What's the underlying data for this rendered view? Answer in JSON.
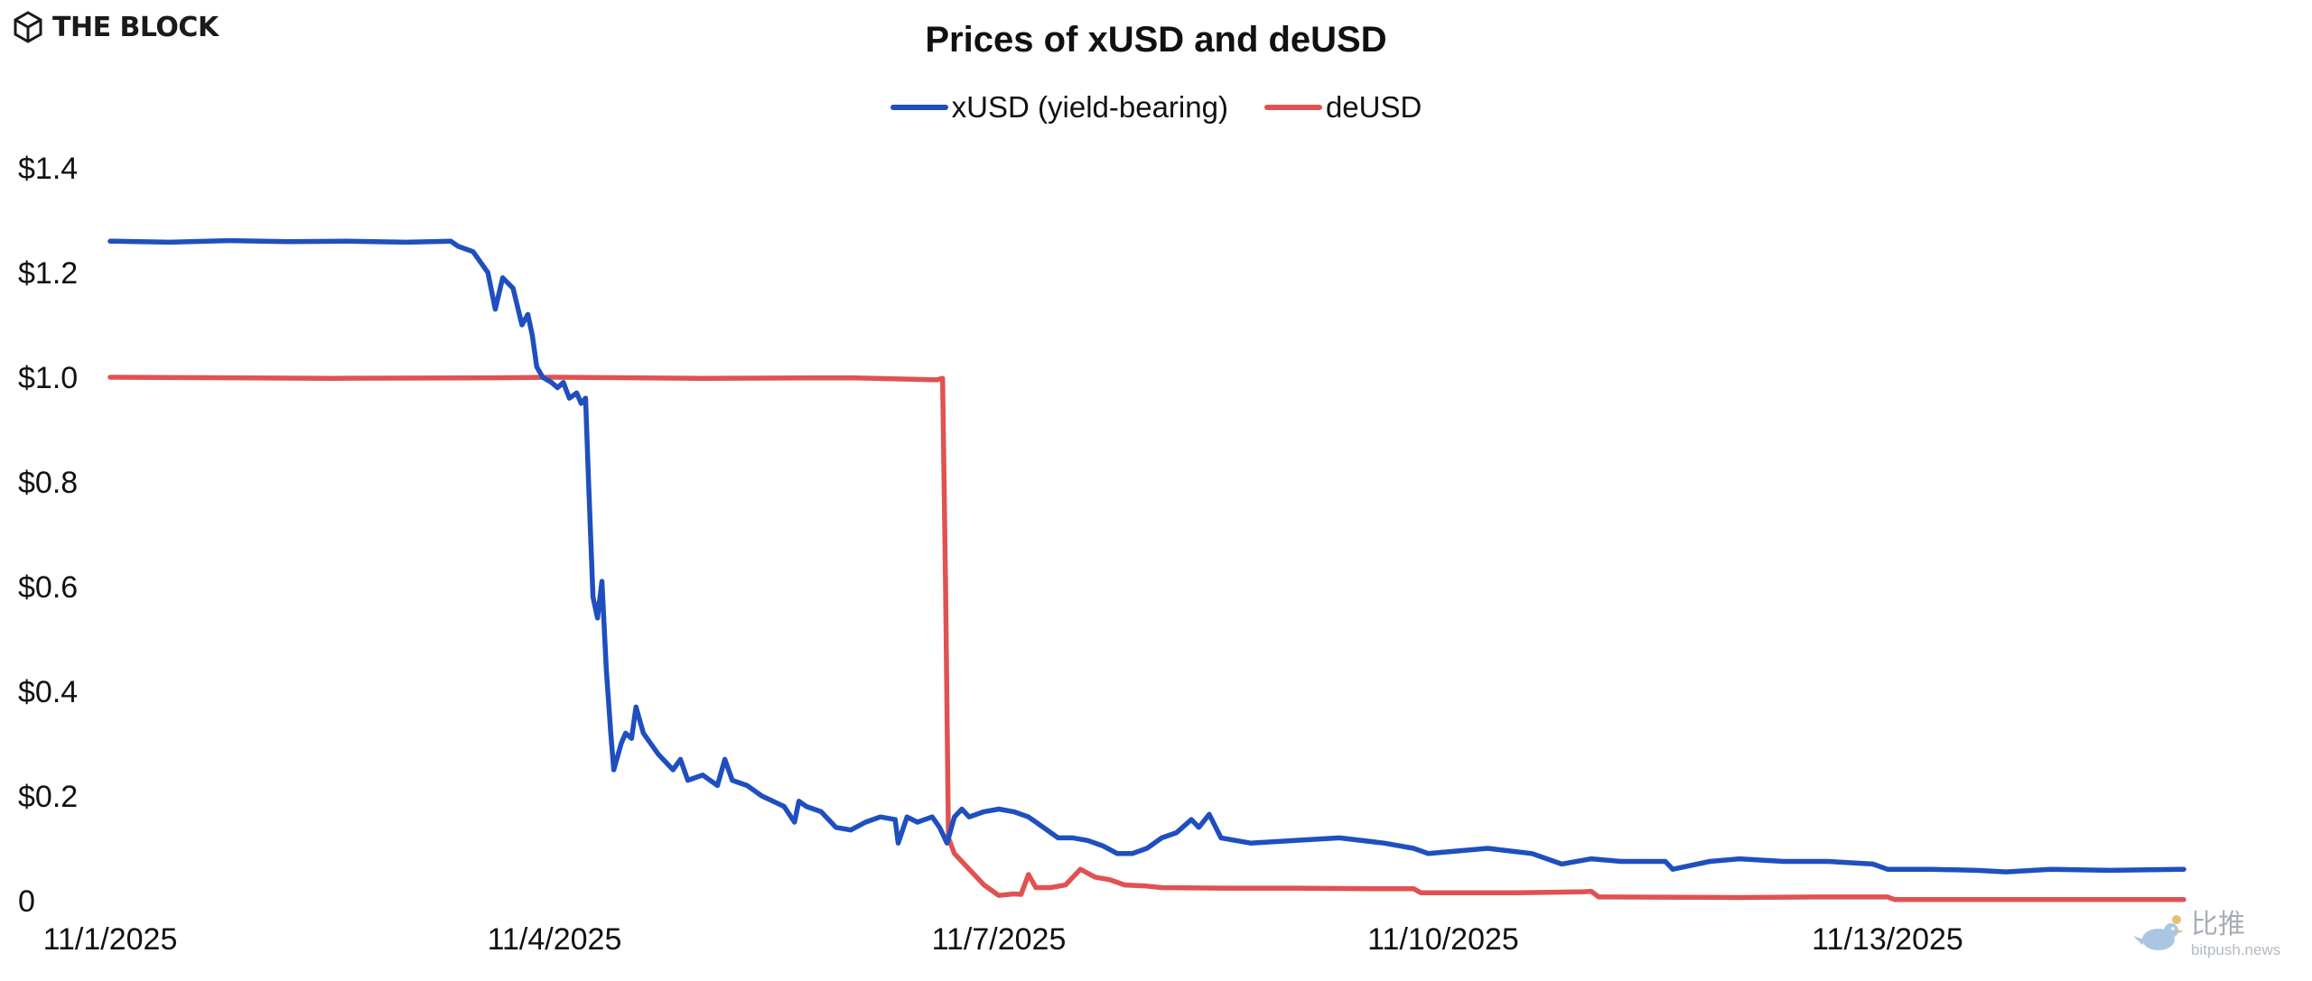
{
  "brand": {
    "name": "THE BLOCK"
  },
  "watermark": {
    "name": "比推",
    "domain": "bitpush.news"
  },
  "chart_data": {
    "type": "line",
    "title": "Prices of xUSD and deUSD",
    "xlabel": "",
    "ylabel": "",
    "legend_position": "top-center",
    "grid": false,
    "xlim": [
      0,
      14.55
    ],
    "ylim": [
      0,
      1.4
    ],
    "x_ticks": [
      {
        "x": 0,
        "label": "11/1/2025"
      },
      {
        "x": 3,
        "label": "11/4/2025"
      },
      {
        "x": 6,
        "label": "11/7/2025"
      },
      {
        "x": 9,
        "label": "11/10/2025"
      },
      {
        "x": 12,
        "label": "11/13/2025"
      }
    ],
    "y_ticks": [
      {
        "y": 0,
        "label": "0"
      },
      {
        "y": 0.2,
        "label": "$0.2"
      },
      {
        "y": 0.4,
        "label": "$0.4"
      },
      {
        "y": 0.6,
        "label": "$0.6"
      },
      {
        "y": 0.8,
        "label": "$0.8"
      },
      {
        "y": 1.0,
        "label": "$1.0"
      },
      {
        "y": 1.2,
        "label": "$1.2"
      },
      {
        "y": 1.4,
        "label": "$1.4"
      }
    ],
    "series": [
      {
        "name": "xUSD (yield-bearing)",
        "color": "#1f4fbf",
        "points": [
          [
            0,
            1.26
          ],
          [
            0.4,
            1.258
          ],
          [
            0.8,
            1.261
          ],
          [
            1.2,
            1.259
          ],
          [
            1.6,
            1.26
          ],
          [
            2.0,
            1.258
          ],
          [
            2.3,
            1.26
          ],
          [
            2.35,
            1.25
          ],
          [
            2.45,
            1.24
          ],
          [
            2.55,
            1.2
          ],
          [
            2.6,
            1.13
          ],
          [
            2.65,
            1.19
          ],
          [
            2.72,
            1.17
          ],
          [
            2.78,
            1.1
          ],
          [
            2.82,
            1.12
          ],
          [
            2.85,
            1.08
          ],
          [
            2.88,
            1.02
          ],
          [
            2.92,
            1.0
          ],
          [
            2.98,
            0.99
          ],
          [
            3.02,
            0.98
          ],
          [
            3.06,
            0.99
          ],
          [
            3.1,
            0.96
          ],
          [
            3.15,
            0.97
          ],
          [
            3.18,
            0.95
          ],
          [
            3.21,
            0.96
          ],
          [
            3.23,
            0.8
          ],
          [
            3.26,
            0.58
          ],
          [
            3.29,
            0.54
          ],
          [
            3.32,
            0.61
          ],
          [
            3.35,
            0.44
          ],
          [
            3.38,
            0.32
          ],
          [
            3.4,
            0.25
          ],
          [
            3.45,
            0.3
          ],
          [
            3.48,
            0.32
          ],
          [
            3.52,
            0.31
          ],
          [
            3.55,
            0.37
          ],
          [
            3.6,
            0.32
          ],
          [
            3.7,
            0.28
          ],
          [
            3.8,
            0.25
          ],
          [
            3.85,
            0.27
          ],
          [
            3.9,
            0.23
          ],
          [
            4.0,
            0.24
          ],
          [
            4.1,
            0.22
          ],
          [
            4.15,
            0.27
          ],
          [
            4.2,
            0.23
          ],
          [
            4.3,
            0.22
          ],
          [
            4.4,
            0.2
          ],
          [
            4.55,
            0.18
          ],
          [
            4.62,
            0.15
          ],
          [
            4.65,
            0.19
          ],
          [
            4.7,
            0.18
          ],
          [
            4.8,
            0.17
          ],
          [
            4.9,
            0.14
          ],
          [
            5.0,
            0.135
          ],
          [
            5.1,
            0.15
          ],
          [
            5.2,
            0.16
          ],
          [
            5.3,
            0.155
          ],
          [
            5.32,
            0.11
          ],
          [
            5.38,
            0.16
          ],
          [
            5.45,
            0.15
          ],
          [
            5.55,
            0.16
          ],
          [
            5.6,
            0.14
          ],
          [
            5.65,
            0.11
          ],
          [
            5.7,
            0.16
          ],
          [
            5.75,
            0.175
          ],
          [
            5.8,
            0.16
          ],
          [
            5.9,
            0.17
          ],
          [
            6.0,
            0.175
          ],
          [
            6.1,
            0.17
          ],
          [
            6.2,
            0.16
          ],
          [
            6.3,
            0.14
          ],
          [
            6.4,
            0.12
          ],
          [
            6.5,
            0.12
          ],
          [
            6.6,
            0.115
          ],
          [
            6.7,
            0.105
          ],
          [
            6.8,
            0.09
          ],
          [
            6.9,
            0.09
          ],
          [
            7.0,
            0.1
          ],
          [
            7.1,
            0.12
          ],
          [
            7.2,
            0.13
          ],
          [
            7.3,
            0.155
          ],
          [
            7.35,
            0.14
          ],
          [
            7.42,
            0.165
          ],
          [
            7.5,
            0.12
          ],
          [
            7.6,
            0.115
          ],
          [
            7.7,
            0.11
          ],
          [
            8.0,
            0.115
          ],
          [
            8.3,
            0.12
          ],
          [
            8.6,
            0.11
          ],
          [
            8.8,
            0.1
          ],
          [
            8.9,
            0.09
          ],
          [
            9.1,
            0.095
          ],
          [
            9.3,
            0.1
          ],
          [
            9.6,
            0.09
          ],
          [
            9.8,
            0.07
          ],
          [
            10.0,
            0.08
          ],
          [
            10.2,
            0.075
          ],
          [
            10.5,
            0.075
          ],
          [
            10.55,
            0.06
          ],
          [
            10.8,
            0.075
          ],
          [
            11.0,
            0.08
          ],
          [
            11.3,
            0.075
          ],
          [
            11.6,
            0.075
          ],
          [
            11.9,
            0.07
          ],
          [
            12.0,
            0.06
          ],
          [
            12.3,
            0.06
          ],
          [
            12.6,
            0.058
          ],
          [
            12.8,
            0.055
          ],
          [
            13.1,
            0.06
          ],
          [
            13.5,
            0.058
          ],
          [
            14.0,
            0.06
          ]
        ]
      },
      {
        "name": "deUSD",
        "color": "#e05252",
        "points": [
          [
            0,
            1.0
          ],
          [
            1.5,
            0.998
          ],
          [
            2.6,
            0.999
          ],
          [
            3.0,
            1.0
          ],
          [
            4.0,
            0.998
          ],
          [
            5.0,
            0.999
          ],
          [
            5.58,
            0.995
          ],
          [
            5.62,
            0.998
          ],
          [
            5.64,
            0.6
          ],
          [
            5.66,
            0.12
          ],
          [
            5.7,
            0.09
          ],
          [
            5.8,
            0.06
          ],
          [
            5.9,
            0.03
          ],
          [
            6.0,
            0.01
          ],
          [
            6.1,
            0.013
          ],
          [
            6.15,
            0.012
          ],
          [
            6.2,
            0.05
          ],
          [
            6.25,
            0.025
          ],
          [
            6.35,
            0.025
          ],
          [
            6.45,
            0.03
          ],
          [
            6.55,
            0.06
          ],
          [
            6.65,
            0.045
          ],
          [
            6.75,
            0.04
          ],
          [
            6.85,
            0.03
          ],
          [
            7.0,
            0.028
          ],
          [
            7.1,
            0.025
          ],
          [
            7.5,
            0.024
          ],
          [
            8.0,
            0.024
          ],
          [
            8.5,
            0.023
          ],
          [
            8.8,
            0.023
          ],
          [
            8.85,
            0.015
          ],
          [
            9.5,
            0.015
          ],
          [
            9.95,
            0.017
          ],
          [
            10.0,
            0.018
          ],
          [
            10.05,
            0.007
          ],
          [
            11.0,
            0.006
          ],
          [
            11.5,
            0.007
          ],
          [
            12.0,
            0.007
          ],
          [
            12.05,
            0.002
          ],
          [
            13.0,
            0.002
          ],
          [
            14.0,
            0.002
          ]
        ]
      }
    ]
  }
}
